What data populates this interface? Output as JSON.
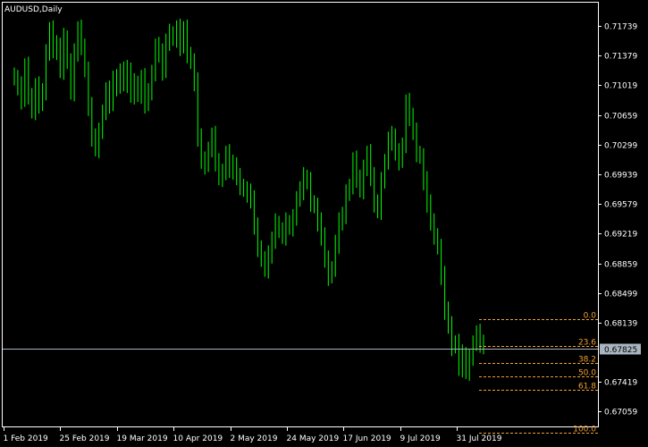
{
  "window": {
    "title": "AUDUSD,Daily"
  },
  "colors": {
    "background": "#000000",
    "frame": "#ffffff",
    "candle": "#00ff00",
    "text": "#ffffff",
    "fib": "#f0a030",
    "price_line": "#a9b5c0",
    "price_label_bg": "#a9b5c0",
    "price_label_text": "#000000"
  },
  "chart_data": {
    "type": "line",
    "title": "AUDUSD,Daily",
    "symbol": "AUDUSD",
    "timeframe": "Daily",
    "ylim": [
      0.6688,
      0.7202
    ],
    "y_ticks": [
      "0.71739",
      "0.71379",
      "0.71019",
      "0.70659",
      "0.70299",
      "0.69939",
      "0.69579",
      "0.69219",
      "0.68859",
      "0.68499",
      "0.68139",
      "0.67419",
      "0.67059"
    ],
    "x_ticks": [
      "1 Feb 2019",
      "25 Feb 2019",
      "19 Mar 2019",
      "10 Apr 2019",
      "2 May 2019",
      "24 May 2019",
      "17 Jun 2019",
      "9 Jul 2019",
      "31 Jul 2019"
    ],
    "current_price": "0.67825",
    "series": [
      {
        "values": [
          0.711,
          0.71,
          0.7085,
          0.7125,
          0.709,
          0.707,
          0.71,
          0.708,
          0.7095,
          0.714,
          0.717,
          0.7145,
          0.715,
          0.712,
          0.716,
          0.713,
          0.7095,
          0.714,
          0.717,
          0.715,
          0.712,
          0.7075,
          0.704,
          0.7025,
          0.7045,
          0.707,
          0.7095,
          0.708,
          0.711,
          0.71,
          0.712,
          0.7105,
          0.712,
          0.709,
          0.7105,
          0.709,
          0.711,
          0.708,
          0.7095,
          0.7115,
          0.715,
          0.714,
          0.712,
          0.7155,
          0.7165,
          0.7158,
          0.717,
          0.715,
          0.717,
          0.714,
          0.713,
          0.7105,
          0.704,
          0.701,
          0.7005,
          0.7025,
          0.704,
          0.701,
          0.699,
          0.6995,
          0.702,
          0.7,
          0.7005,
          0.699,
          0.698,
          0.6975,
          0.697,
          0.6965,
          0.693,
          0.6905,
          0.689,
          0.688,
          0.6895,
          0.6915,
          0.6935,
          0.6925,
          0.692,
          0.6935,
          0.693,
          0.694,
          0.6965,
          0.6975,
          0.699,
          0.6985,
          0.696,
          0.6955,
          0.6935,
          0.692,
          0.689,
          0.687,
          0.688,
          0.691,
          0.6935,
          0.6945,
          0.697,
          0.698,
          0.701,
          0.699,
          0.6975,
          0.7,
          0.702,
          0.699,
          0.696,
          0.695,
          0.6985,
          0.701,
          0.7035,
          0.704,
          0.702,
          0.701,
          0.703,
          0.708,
          0.7065,
          0.7045,
          0.702,
          0.7015,
          0.6985,
          0.696,
          0.6935,
          0.692,
          0.6905,
          0.687,
          0.683,
          0.681,
          0.6785,
          0.679,
          0.676,
          0.6775,
          0.6755,
          0.677,
          0.679,
          0.68,
          0.679,
          0.6785
        ]
      }
    ],
    "fibonacci": [
      {
        "label": "0.0",
        "price": 0.6818
      },
      {
        "label": "23.6",
        "price": 0.67853
      },
      {
        "label": "38.2",
        "price": 0.67651
      },
      {
        "label": "50.0",
        "price": 0.67488
      },
      {
        "label": "61.8",
        "price": 0.67325
      },
      {
        "label": "100.0",
        "price": 0.668
      }
    ]
  }
}
